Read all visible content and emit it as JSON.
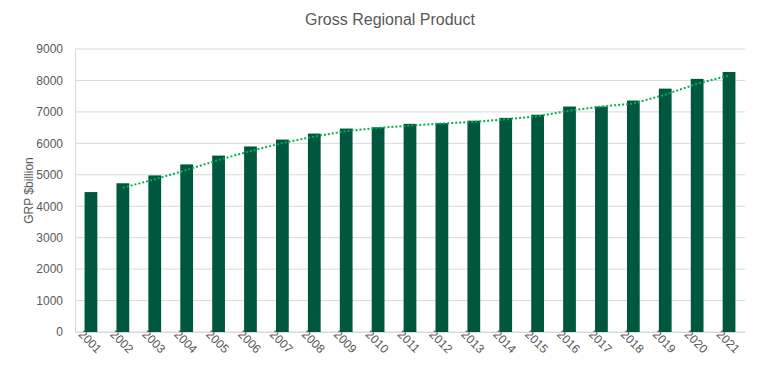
{
  "chart_data": {
    "type": "bar",
    "title": "Gross Regional Product",
    "y_label": "GRP $billion",
    "categories": [
      "2001",
      "2002",
      "2003",
      "2004",
      "2005",
      "2006",
      "2007",
      "2008",
      "2009",
      "2010",
      "2011",
      "2012",
      "2013",
      "2014",
      "2015",
      "2016",
      "2017",
      "2018",
      "2019",
      "2020",
      "2021"
    ],
    "series": [
      {
        "type": "bar",
        "color": "#00573f",
        "values": [
          4450,
          4730,
          4980,
          5330,
          5610,
          5900,
          6120,
          6310,
          6470,
          6510,
          6620,
          6640,
          6720,
          6810,
          6910,
          7170,
          7170,
          7360,
          7740,
          8050,
          8270
        ]
      },
      {
        "type": "line",
        "line_style": "dotted",
        "color": "#00b050",
        "values": [
          null,
          4590,
          4855,
          5155,
          5470,
          5755,
          6010,
          6215,
          6390,
          6490,
          6565,
          6630,
          6680,
          6765,
          6860,
          7040,
          7170,
          7265,
          7550,
          7895,
          8160
        ]
      }
    ],
    "ylim": [
      0,
      9000
    ],
    "yticks": [
      0,
      1000,
      2000,
      3000,
      4000,
      5000,
      6000,
      7000,
      8000,
      9000
    ],
    "grid": true
  }
}
